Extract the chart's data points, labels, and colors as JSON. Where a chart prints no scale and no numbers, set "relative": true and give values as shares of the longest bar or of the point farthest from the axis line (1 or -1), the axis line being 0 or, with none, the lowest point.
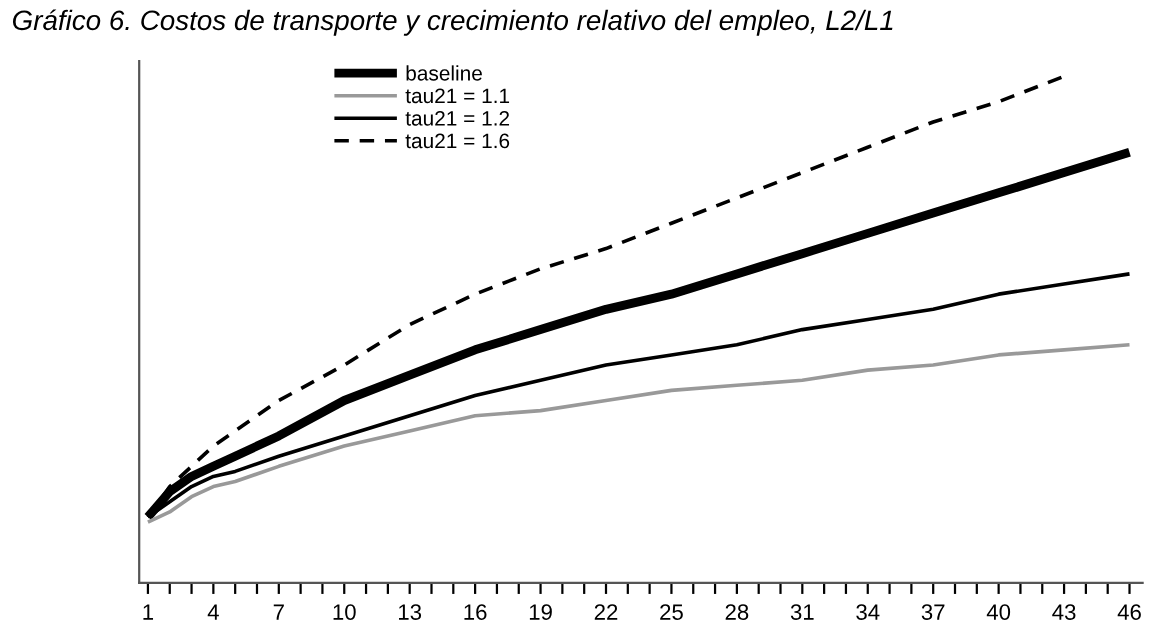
{
  "chart_data": {
    "type": "line",
    "title": "Gráfico 6. Costos de transporte y crecimiento relativo del empleo, L2/L1",
    "relative": true,
    "tick_labels": "x",
    "grid": false,
    "legend": "top left",
    "marker": "none",
    "x": [
      1,
      2,
      3,
      4,
      5,
      7,
      10,
      13,
      16,
      19,
      22,
      25,
      28,
      31,
      34,
      37,
      40,
      43,
      46
    ],
    "xlim": [
      0.6,
      46.6
    ],
    "xticks": [
      1,
      {
        "value": 2,
        "label": null
      },
      {
        "value": 3,
        "label": null
      },
      4,
      {
        "value": 5,
        "label": null
      },
      {
        "value": 6,
        "label": null
      },
      7,
      {
        "value": 8,
        "label": null
      },
      {
        "value": 9,
        "label": null
      },
      10,
      {
        "value": 11,
        "label": null
      },
      {
        "value": 12,
        "label": null
      },
      13,
      {
        "value": 14,
        "label": null
      },
      {
        "value": 15,
        "label": null
      },
      16,
      {
        "value": 17,
        "label": null
      },
      {
        "value": 18,
        "label": null
      },
      19,
      {
        "value": 20,
        "label": null
      },
      {
        "value": 21,
        "label": null
      },
      22,
      {
        "value": 23,
        "label": null
      },
      {
        "value": 24,
        "label": null
      },
      25,
      {
        "value": 26,
        "label": null
      },
      {
        "value": 27,
        "label": null
      },
      28,
      {
        "value": 29,
        "label": null
      },
      {
        "value": 30,
        "label": null
      },
      31,
      {
        "value": 32,
        "label": null
      },
      {
        "value": 33,
        "label": null
      },
      34,
      {
        "value": 35,
        "label": null
      },
      {
        "value": 36,
        "label": null
      },
      37,
      {
        "value": 38,
        "label": null
      },
      {
        "value": 39,
        "label": null
      },
      40,
      {
        "value": 41,
        "label": null
      },
      {
        "value": 42,
        "label": null
      },
      43,
      {
        "value": 44,
        "label": null
      },
      {
        "value": 45,
        "label": null
      },
      46
    ],
    "series": [
      {
        "name": "baseline",
        "color": "#000000",
        "line_style": "solid",
        "values": [
          0.13,
          0.18,
          0.21,
          0.23,
          0.25,
          0.29,
          0.36,
          0.41,
          0.46,
          0.5,
          0.54,
          0.57,
          0.61,
          0.65,
          0.69,
          0.73,
          0.77,
          0.81,
          0.85
        ]
      },
      {
        "name": "tau21 = 1.1",
        "color": "#999999",
        "line_style": "solid",
        "values": [
          0.12,
          0.14,
          0.17,
          0.19,
          0.2,
          0.23,
          0.27,
          0.3,
          0.33,
          0.34,
          0.36,
          0.38,
          0.39,
          0.4,
          0.42,
          0.43,
          0.45,
          0.46,
          0.47
        ]
      },
      {
        "name": "tau21 = 1.2",
        "color": "#000000",
        "line_style": "solid",
        "values": [
          0.13,
          0.16,
          0.19,
          0.21,
          0.22,
          0.25,
          0.29,
          0.33,
          0.37,
          0.4,
          0.43,
          0.45,
          0.47,
          0.5,
          0.52,
          0.54,
          0.57,
          0.59,
          0.61
        ]
      },
      {
        "name": "tau21 = 1.6",
        "color": "#000000",
        "line_style": "dashed",
        "values": [
          0.13,
          0.19,
          0.23,
          0.27,
          0.3,
          0.36,
          0.43,
          0.51,
          0.57,
          0.62,
          0.66,
          0.71,
          0.76,
          0.81,
          0.86,
          0.91,
          0.95,
          1,
          null
        ]
      }
    ]
  }
}
